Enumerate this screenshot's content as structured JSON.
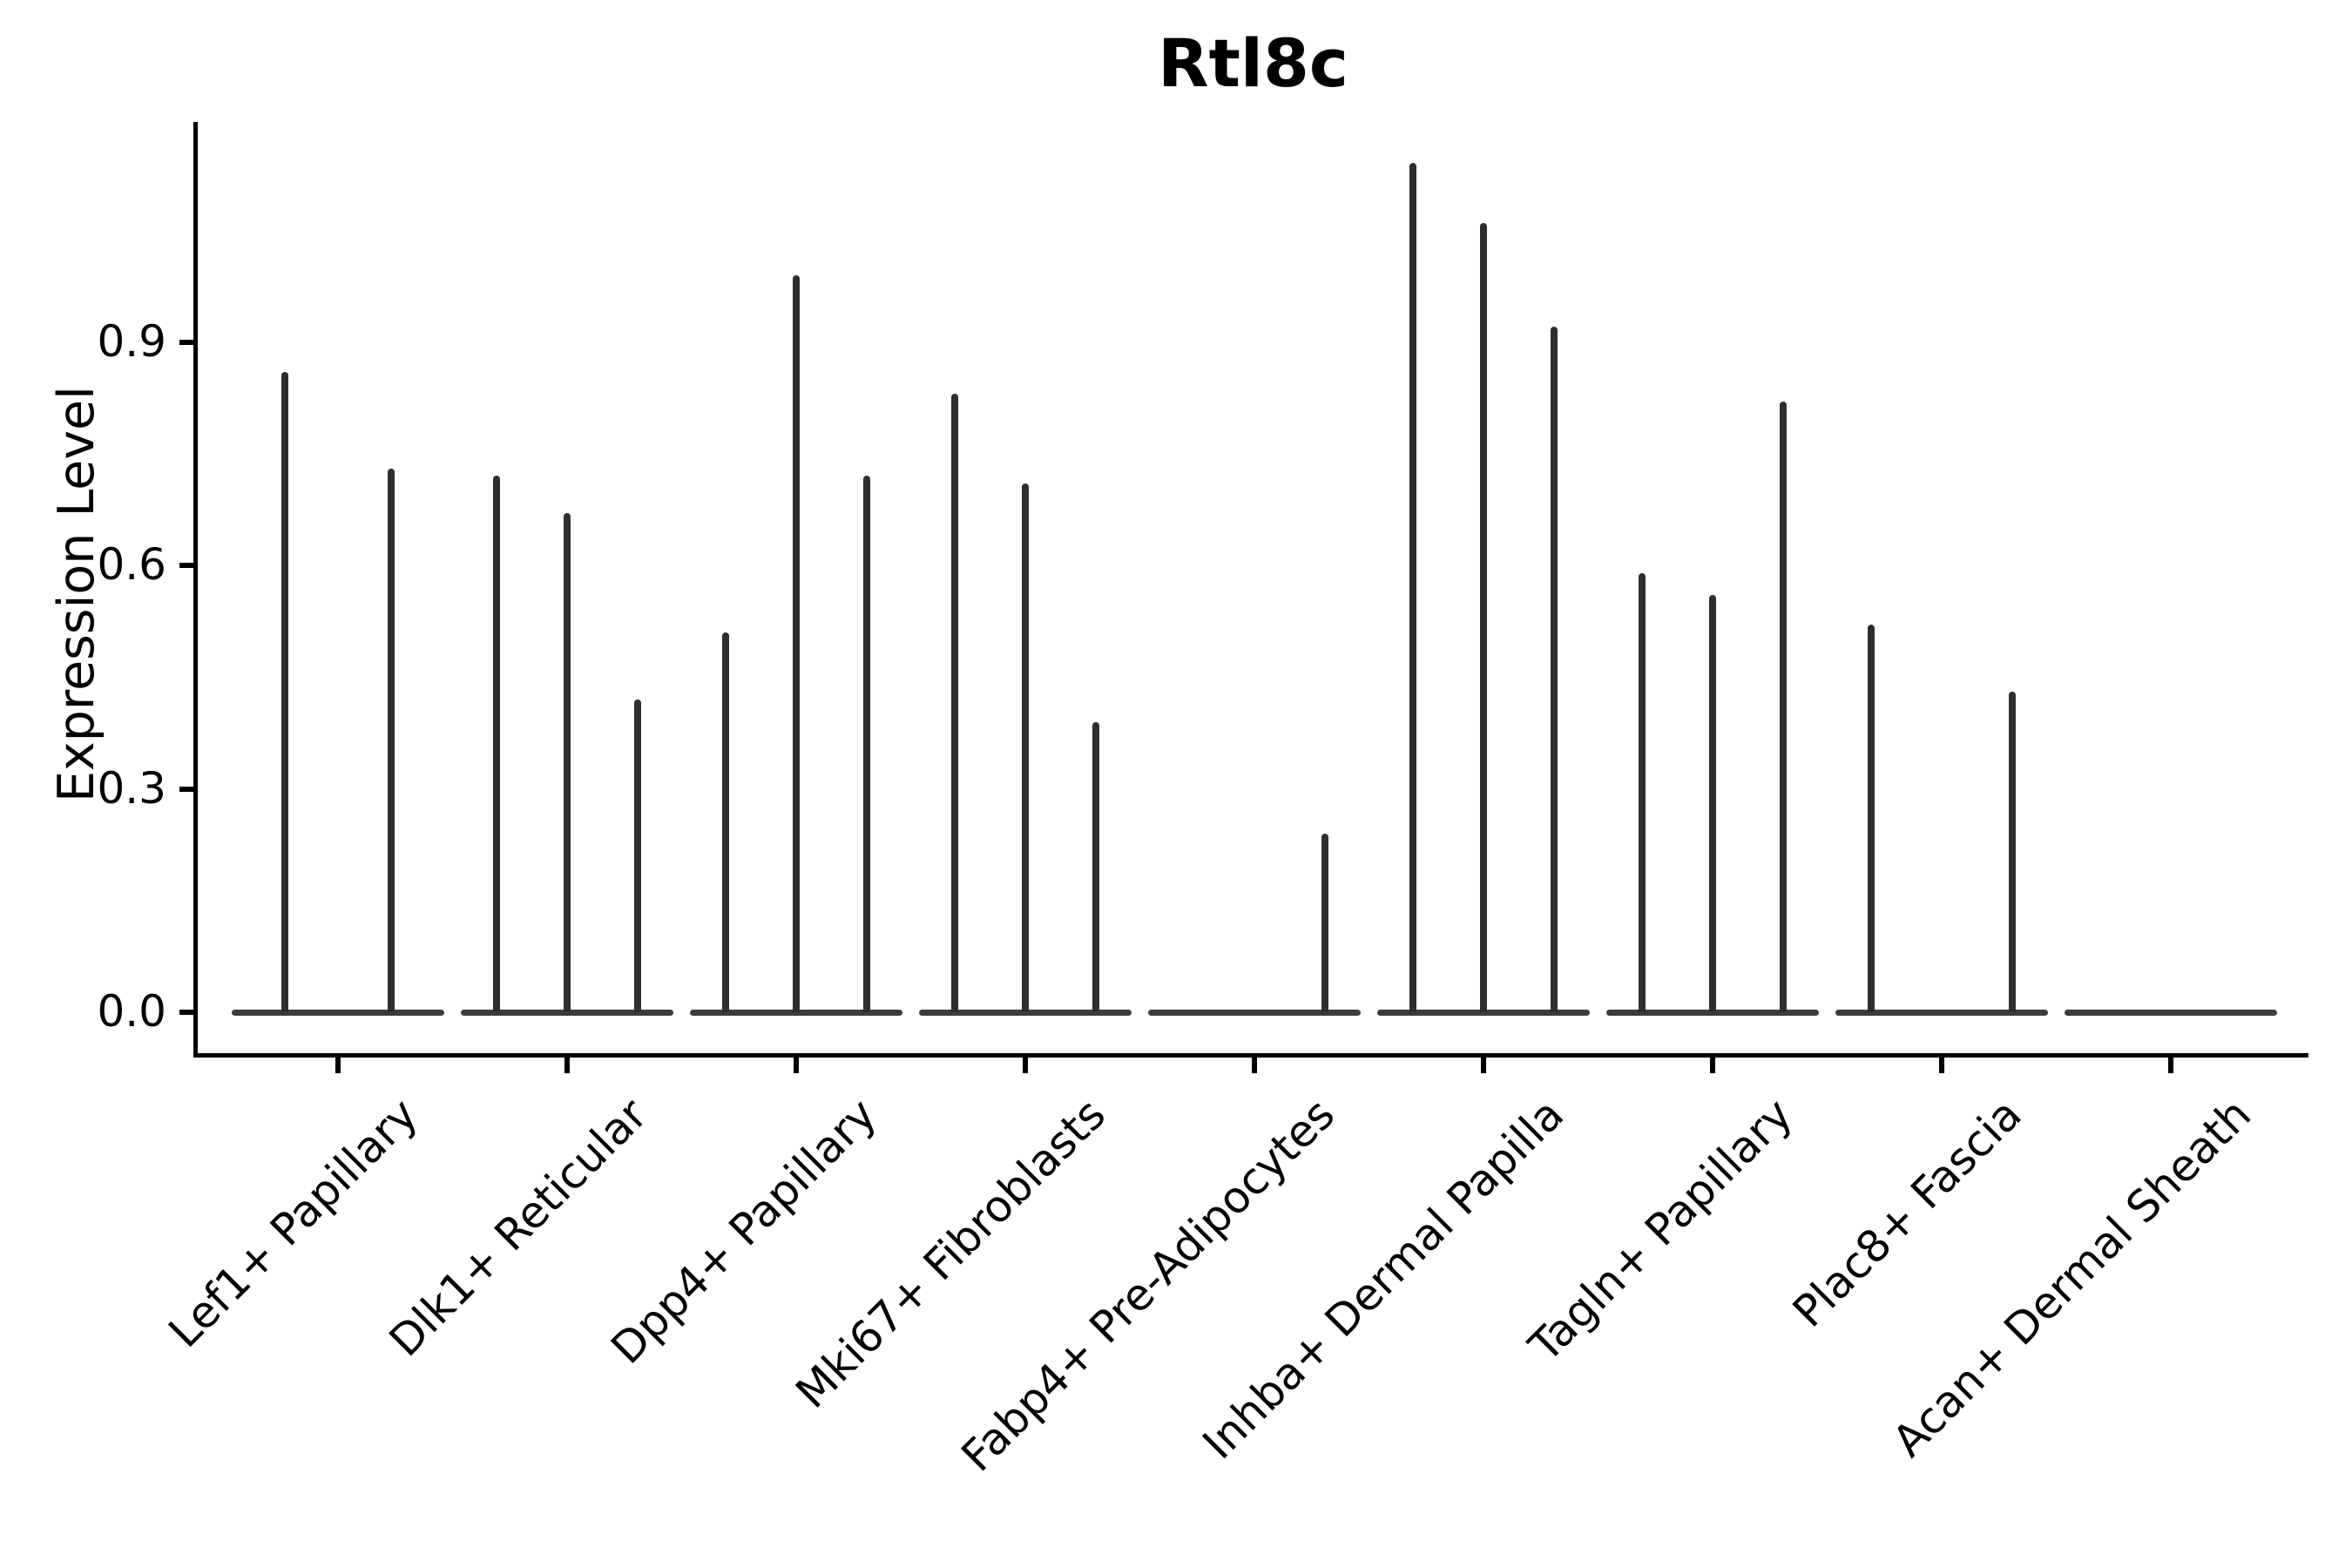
{
  "chart_data": {
    "type": "violin",
    "title": "Rtl8c",
    "ylabel": "Expression Level",
    "xlabel": "",
    "ylim": [
      0,
      1.19
    ],
    "yticks": [
      0.0,
      0.3,
      0.6,
      0.9
    ],
    "yticklabels": [
      "0.0",
      "0.3",
      "0.6",
      "0.9"
    ],
    "grid": false,
    "legend_position": "none",
    "categories": [
      "Lef1+ Papillary",
      "Dlk1+ Reticular",
      "Dpp4+ Papillary",
      "Mki67+ Fibroblasts",
      "Fabp4+ Pre-Adipocytes",
      "Inhba+ Dermal Papilla",
      "Tagln+ Papillary",
      "Plac8+ Fascia",
      "Acan+ Dermal Sheath"
    ],
    "violins": [
      {
        "category": "Lef1+ Papillary",
        "violin_max_values": [
          0.86,
          0.73
        ]
      },
      {
        "category": "Dlk1+ Reticular",
        "violin_max_values": [
          0.72,
          0.67,
          0.42
        ]
      },
      {
        "category": "Dpp4+ Papillary",
        "violin_max_values": [
          0.51,
          0.99,
          0.72
        ]
      },
      {
        "category": "Mki67+ Fibroblasts",
        "violin_max_values": [
          0.83,
          0.71,
          0.39
        ]
      },
      {
        "category": "Fabp4+ Pre-Adipocytes",
        "violin_max_values": [
          0.0,
          0.0,
          0.24
        ]
      },
      {
        "category": "Inhba+ Dermal Papilla",
        "violin_max_values": [
          1.14,
          1.06,
          0.92
        ]
      },
      {
        "category": "Tagln+ Papillary",
        "violin_max_values": [
          0.59,
          0.56,
          0.82
        ]
      },
      {
        "category": "Plac8+ Fascia",
        "violin_max_values": [
          0.52,
          0.0,
          0.43
        ]
      },
      {
        "category": "Acan+ Dermal Sheath",
        "violin_max_values": [
          0.0,
          0.0,
          0.0
        ]
      }
    ]
  },
  "style": {
    "background": "#ffffff",
    "axis_color": "#000000",
    "spike_color": "#2e2e2e",
    "baseline_color": "#3c3c3c",
    "text_color": "#000000"
  }
}
